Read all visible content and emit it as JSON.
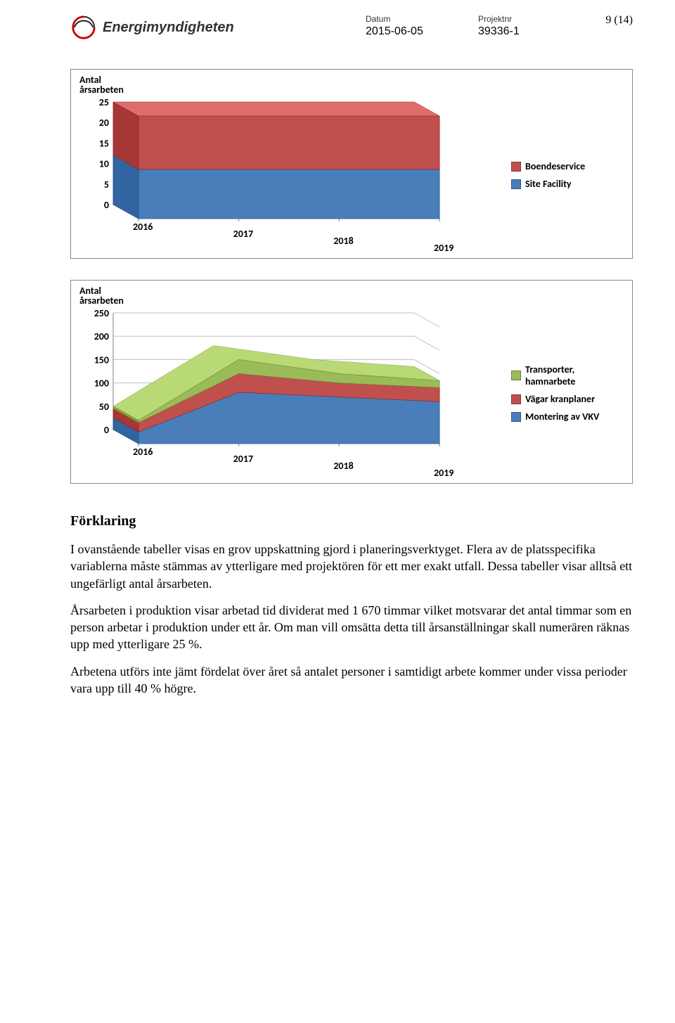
{
  "page_number": "9 (14)",
  "header": {
    "logo_text": "Energimyndigheten",
    "datum_label": "Datum",
    "datum_value": "2015-06-05",
    "projektnr_label": "Projektnr",
    "projektnr_value": "39336-1"
  },
  "chart1": {
    "type": "stacked-area-3d",
    "y_axis_title_line1": "Antal",
    "y_axis_title_line2": "årsarbeten",
    "categories": [
      "2016",
      "2017",
      "2018",
      "2019"
    ],
    "series": [
      {
        "name": "Site Facility",
        "color": "#4a7ebb",
        "values": [
          12,
          12,
          12,
          12
        ]
      },
      {
        "name": "Boendeservice",
        "color": "#c0504d",
        "values": [
          13,
          13,
          13,
          13
        ]
      }
    ],
    "legend_order": [
      "Boendeservice",
      "Site Facility"
    ],
    "y_ticks": [
      0,
      5,
      10,
      15,
      20,
      25
    ],
    "ylim": [
      0,
      25
    ],
    "background_color": "#ffffff",
    "grid_color": "#bfbfbf",
    "floor_color": "#c7c7c7",
    "font": "Calibri",
    "tick_fontsize": 14,
    "title_fontsize": 14
  },
  "chart2": {
    "type": "stacked-area-3d",
    "y_axis_title_line1": "Antal",
    "y_axis_title_line2": "årsarbeten",
    "categories": [
      "2016",
      "2017",
      "2018",
      "2019"
    ],
    "series": [
      {
        "name": "Montering av VKV",
        "color": "#4a7ebb",
        "values": [
          25,
          110,
          100,
          90
        ]
      },
      {
        "name": "Vägar kranplaner",
        "color": "#c0504d",
        "values": [
          20,
          40,
          30,
          30
        ]
      },
      {
        "name": "Transporter, hamnarbete",
        "color": "#9bbb59",
        "values": [
          5,
          30,
          20,
          15
        ]
      }
    ],
    "legend_order": [
      "Transporter, hamnarbete",
      "Vägar kranplaner",
      "Montering av VKV"
    ],
    "y_ticks": [
      0,
      50,
      100,
      150,
      200,
      250
    ],
    "ylim": [
      0,
      250
    ],
    "background_color": "#ffffff",
    "grid_color": "#bfbfbf",
    "floor_color": "#c7c7c7",
    "font": "Calibri",
    "tick_fontsize": 14,
    "title_fontsize": 14
  },
  "text": {
    "heading": "Förklaring",
    "p1": "I ovanstående tabeller visas en grov uppskattning gjord i planeringsverktyget. Flera av de platsspecifika variablerna måste stämmas av ytterligare med projektören för ett mer exakt utfall. Dessa tabeller visar alltså ett ungefärligt antal årsarbeten.",
    "p2": "Årsarbeten i produktion visar arbetad tid dividerat med 1 670 timmar vilket motsvarar det antal timmar som en person arbetar i produktion under ett år. Om man vill omsätta detta till årsanställningar skall numerären räknas upp med ytterligare 25 %.",
    "p3": "Arbetena utförs inte jämt fördelat över året så antalet personer i samtidigt arbete kommer under vissa perioder vara upp till 40 % högre."
  }
}
